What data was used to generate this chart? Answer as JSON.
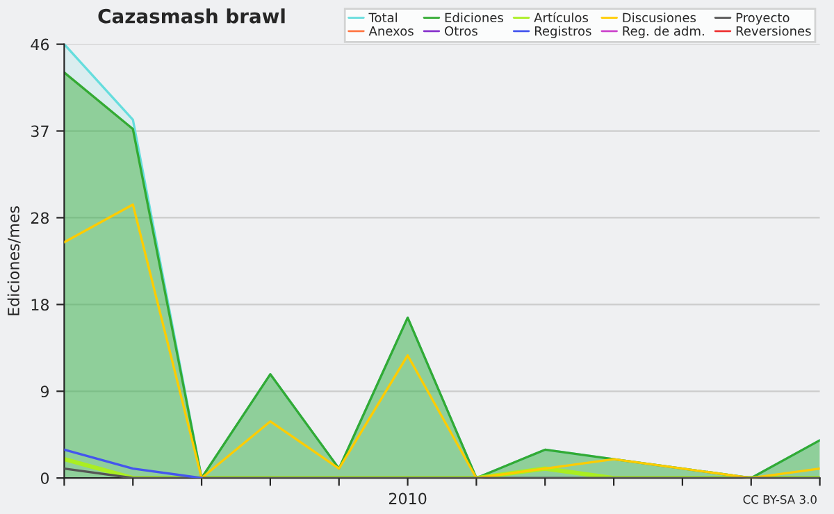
{
  "chart_data": {
    "type": "line",
    "title": "Cazasmash brawl",
    "ylabel": "Ediciones/mes",
    "categories": [
      null,
      null,
      null,
      null,
      null,
      "2010",
      null,
      null,
      null,
      null,
      null,
      null
    ],
    "series": [
      {
        "name": "Total",
        "type": "area",
        "color": "#66dddd",
        "values": [
          46,
          38,
          0,
          11,
          1,
          17,
          0,
          3,
          2,
          1,
          0,
          4
        ]
      },
      {
        "name": "Ediciones",
        "type": "area",
        "color": "#33aa33",
        "values": [
          43,
          37,
          0,
          11,
          1,
          17,
          0,
          3,
          2,
          1,
          0,
          4
        ]
      },
      {
        "name": "Artículos",
        "color": "#aaee22",
        "values": [
          2,
          0,
          0,
          0,
          0,
          0,
          0,
          1,
          0,
          0,
          0,
          0
        ]
      },
      {
        "name": "Discusiones",
        "color": "#ffcc00",
        "values": [
          25,
          29,
          0,
          6,
          1,
          13,
          0,
          1,
          2,
          1,
          0,
          1
        ]
      },
      {
        "name": "Proyecto",
        "color": "#555555",
        "values": [
          1,
          0,
          0,
          0,
          0,
          0,
          0,
          0,
          0,
          0,
          0,
          0
        ]
      },
      {
        "name": "Anexos",
        "color": "#ff7744",
        "values": [
          null,
          null,
          null,
          null,
          null,
          null,
          null,
          null,
          null,
          null,
          null,
          null
        ]
      },
      {
        "name": "Otros",
        "color": "#8833cc",
        "values": [
          null,
          null,
          null,
          null,
          null,
          null,
          null,
          null,
          null,
          null,
          null,
          null
        ]
      },
      {
        "name": "Registros",
        "color": "#4455ee",
        "values": [
          3,
          1,
          0,
          null,
          null,
          null,
          null,
          null,
          null,
          null,
          null,
          null
        ]
      },
      {
        "name": "Reg. de adm.",
        "color": "#cc44cc",
        "values": [
          null,
          null,
          null,
          null,
          null,
          null,
          null,
          null,
          null,
          null,
          null,
          null
        ]
      },
      {
        "name": "Reversiones",
        "color": "#ee3333",
        "values": [
          null,
          null,
          null,
          null,
          null,
          null,
          null,
          null,
          null,
          null,
          null,
          null
        ]
      }
    ],
    "ylim": [
      0,
      46
    ],
    "yticks": [
      0,
      {
        "value": 9.2,
        "label": "9"
      },
      {
        "value": 18.4,
        "label": "18"
      },
      {
        "value": 27.6,
        "label": "28"
      },
      {
        "value": 36.8,
        "label": "37"
      },
      46
    ],
    "grid": "y",
    "legend": "top right",
    "annotations": [
      "CC BY-SA 3.0"
    ]
  }
}
